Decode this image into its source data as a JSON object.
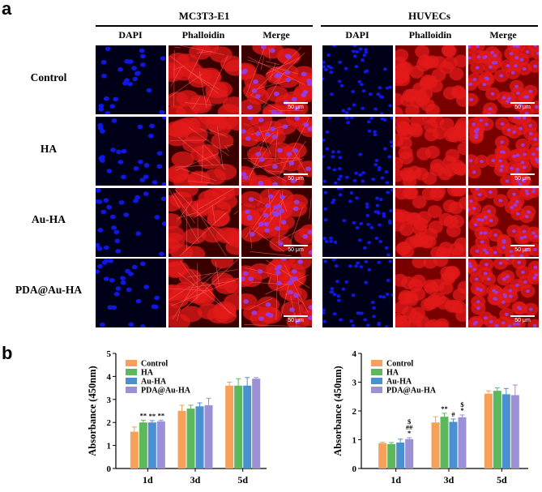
{
  "panel_labels": {
    "a": "a",
    "b": "b"
  },
  "groups": [
    {
      "title": "MC3T3-E1",
      "columns": [
        "DAPI",
        "Phalloidin",
        "Merge"
      ]
    },
    {
      "title": "HUVECs",
      "columns": [
        "DAPI",
        "Phalloidin",
        "Merge"
      ]
    }
  ],
  "rows": [
    "Control",
    "HA",
    "Au-HA",
    "PDA@Au-HA"
  ],
  "scale_bar_label": "50 μm",
  "colors": {
    "dapi": "#1018e0",
    "phalloidin": "#e21a1a",
    "merge_nucleus": "#9a3ad8",
    "tile_bg": "#00003a",
    "series": [
      "#f5a15a",
      "#5cb85c",
      "#4a8fcf",
      "#9b8fd6"
    ]
  },
  "chart_data": [
    {
      "type": "bar",
      "ylabel": "Absorbance (450nm)",
      "ylim": [
        0,
        5
      ],
      "yticks": [
        0,
        1,
        2,
        3,
        4,
        5
      ],
      "categories": [
        "1d",
        "3d",
        "5d"
      ],
      "legend_position": "top-left",
      "series": [
        {
          "name": "Control",
          "values": [
            1.6,
            2.5,
            3.6
          ],
          "errors": [
            0.2,
            0.25,
            0.15
          ]
        },
        {
          "name": "HA",
          "values": [
            2.0,
            2.6,
            3.6
          ],
          "errors": [
            0.1,
            0.15,
            0.3
          ]
        },
        {
          "name": "Au-HA",
          "values": [
            2.0,
            2.7,
            3.6
          ],
          "errors": [
            0.08,
            0.15,
            0.35
          ]
        },
        {
          "name": "PDA@Au-HA",
          "values": [
            2.05,
            2.75,
            3.9
          ],
          "errors": [
            0.05,
            0.3,
            0.05
          ]
        }
      ],
      "annotations": [
        {
          "category": 0,
          "series": 1,
          "text": "**"
        },
        {
          "category": 0,
          "series": 2,
          "text": "**"
        },
        {
          "category": 0,
          "series": 3,
          "text": "**"
        }
      ]
    },
    {
      "type": "bar",
      "ylabel": "Absorbance (450nm)",
      "ylim": [
        0,
        4
      ],
      "yticks": [
        0,
        1,
        2,
        3,
        4
      ],
      "categories": [
        "1d",
        "3d",
        "5d"
      ],
      "legend_position": "top-left",
      "series": [
        {
          "name": "Control",
          "values": [
            0.88,
            1.6,
            2.6
          ],
          "errors": [
            0.03,
            0.2,
            0.1
          ]
        },
        {
          "name": "HA",
          "values": [
            0.85,
            1.8,
            2.7
          ],
          "errors": [
            0.05,
            0.12,
            0.1
          ]
        },
        {
          "name": "Au-HA",
          "values": [
            0.9,
            1.62,
            2.58
          ],
          "errors": [
            0.12,
            0.1,
            0.2
          ]
        },
        {
          "name": "PDA@Au-HA",
          "values": [
            1.02,
            1.78,
            2.55
          ],
          "errors": [
            0.05,
            0.08,
            0.35
          ]
        }
      ],
      "annotations": [
        {
          "category": 0,
          "series": 3,
          "text": "$\n##\n*"
        },
        {
          "category": 1,
          "series": 1,
          "text": "**"
        },
        {
          "category": 1,
          "series": 2,
          "text": "#"
        },
        {
          "category": 1,
          "series": 3,
          "text": "$\n*"
        }
      ]
    }
  ]
}
